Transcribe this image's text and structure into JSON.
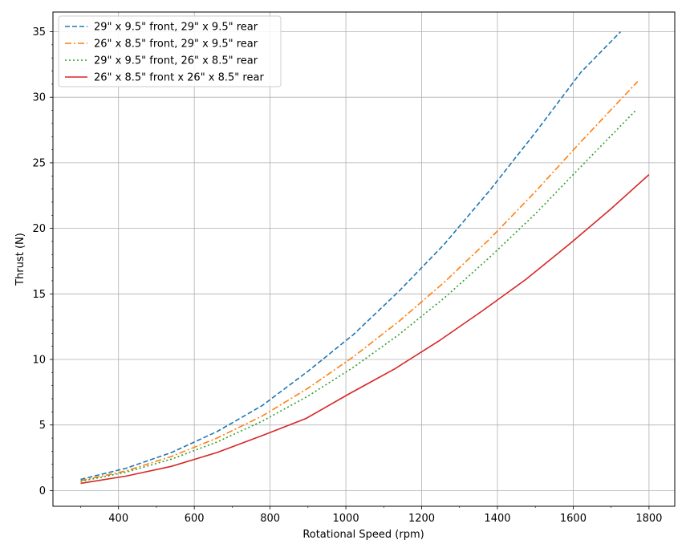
{
  "chart_data": {
    "type": "line",
    "xlabel": "Rotational Speed (rpm)",
    "ylabel": "Thrust (N)",
    "xlim": [
      227,
      1868
    ],
    "ylim": [
      -1.2,
      36.5
    ],
    "xticks": [
      400,
      600,
      800,
      1000,
      1200,
      1400,
      1600,
      1800
    ],
    "xtick_labels": [
      "400",
      "600",
      "800",
      "1000",
      "1200",
      "1400",
      "1600",
      "1800"
    ],
    "yticks": [
      0,
      5,
      10,
      15,
      20,
      25,
      30,
      35
    ],
    "ytick_labels": [
      "0",
      "5",
      "10",
      "15",
      "20",
      "25",
      "30",
      "35"
    ],
    "grid": true,
    "legend": "top-left",
    "series": [
      {
        "name": "29\" x 9.5\" front, 29\" x 9.5\" rear",
        "color": "#1f77b4",
        "dash": "dashed",
        "x": [
          300,
          420,
          540,
          660,
          780,
          900,
          1020,
          1140,
          1260,
          1380,
          1500,
          1620,
          1725
        ],
        "y": [
          0.85,
          1.7,
          2.9,
          4.5,
          6.5,
          9.1,
          11.9,
          15.2,
          18.8,
          22.9,
          27.3,
          31.9,
          35.0
        ]
      },
      {
        "name": "26\" x 8.5\" front, 29\" x 9.5\" rear",
        "color": "#ff7f0e",
        "dash": "dashdot",
        "x": [
          300,
          420,
          540,
          660,
          780,
          900,
          1020,
          1140,
          1260,
          1380,
          1500,
          1620,
          1770
        ],
        "y": [
          0.75,
          1.5,
          2.6,
          4.0,
          5.7,
          7.8,
          10.2,
          12.9,
          15.9,
          19.2,
          22.8,
          26.6,
          31.2
        ]
      },
      {
        "name": "29\" x 9.5\" front, 26\" x 8.5\" rear",
        "color": "#2ca02c",
        "dash": "dotted",
        "x": [
          300,
          420,
          540,
          660,
          780,
          900,
          1020,
          1140,
          1260,
          1380,
          1500,
          1620,
          1765
        ],
        "y": [
          0.7,
          1.4,
          2.4,
          3.7,
          5.3,
          7.2,
          9.4,
          11.9,
          14.7,
          17.8,
          21.1,
          24.7,
          29.0
        ]
      },
      {
        "name": "26\" x 8.5\" front x 26\" x 8.5\" rear",
        "color": "#d62728",
        "dash": "solid",
        "x": [
          300,
          420,
          540,
          660,
          780,
          895,
          1010,
          1130,
          1245,
          1360,
          1475,
          1590,
          1700,
          1800
        ],
        "y": [
          0.55,
          1.1,
          1.85,
          2.9,
          4.2,
          5.5,
          7.4,
          9.3,
          11.4,
          13.7,
          16.1,
          18.8,
          21.5,
          24.1
        ]
      }
    ]
  }
}
